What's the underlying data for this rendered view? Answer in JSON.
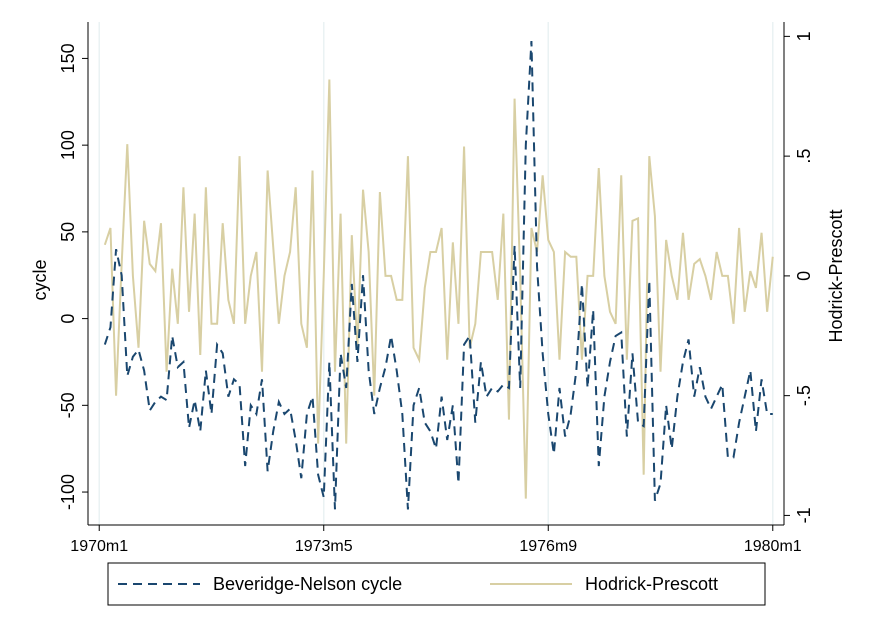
{
  "chart_data": {
    "type": "line",
    "y_label": "cycle",
    "y2_label": "Hodrick-Prescott",
    "x": [
      121,
      122,
      123,
      124,
      125,
      126,
      127,
      128,
      129,
      130,
      131,
      132,
      133,
      134,
      135,
      136,
      137,
      138,
      139,
      140,
      141,
      142,
      143,
      144,
      145,
      146,
      147,
      148,
      149,
      150,
      151,
      152,
      153,
      154,
      155,
      156,
      157,
      158,
      159,
      160,
      161,
      162,
      163,
      164,
      165,
      166,
      167,
      168,
      169,
      170,
      171,
      172,
      173,
      174,
      175,
      176,
      177,
      178,
      179,
      180,
      181,
      182,
      183,
      184,
      185,
      186,
      187,
      188,
      189,
      190,
      191,
      192,
      193,
      194,
      195,
      196,
      197,
      198,
      199,
      200,
      201,
      202,
      203,
      204,
      205,
      206,
      207,
      208,
      209,
      210,
      211,
      212,
      213,
      214,
      215,
      216,
      217,
      218,
      219,
      220,
      221,
      222,
      223,
      224,
      225,
      226,
      227,
      228,
      229,
      230,
      231,
      232,
      233,
      234,
      235,
      236,
      237,
      238,
      239,
      240
    ],
    "xlim": [
      118,
      242
    ],
    "xticks": [
      {
        "value": 120,
        "label": "1970m1"
      },
      {
        "value": 160,
        "label": "1973m5"
      },
      {
        "value": 200,
        "label": "1976m9"
      },
      {
        "value": 240,
        "label": "1980m1"
      }
    ],
    "ylim": [
      -119,
      171
    ],
    "yticks": [
      -100,
      -50,
      0,
      50,
      100,
      150
    ],
    "y2lim": [
      -1.04,
      1.06
    ],
    "y2ticks": [
      -1,
      {
        "value": -0.5,
        "label": "-.5"
      },
      0,
      {
        "value": 0.5,
        "label": ".5"
      },
      1
    ],
    "grid": true,
    "series": [
      {
        "name": "Beveridge-Nelson cycle",
        "color": "#1a476f",
        "dash": true,
        "values": [
          -15,
          -5,
          40,
          25,
          -33,
          -22,
          -18,
          -30,
          -53,
          -48,
          -45,
          -47,
          -10,
          -28,
          -25,
          -63,
          -47,
          -65,
          -30,
          -55,
          -15,
          -20,
          -45,
          -35,
          -38,
          -85,
          -50,
          -55,
          -35,
          -88,
          -65,
          -48,
          -55,
          -52,
          -70,
          -92,
          -55,
          -45,
          -90,
          -103,
          -25,
          -110,
          -20,
          -40,
          20,
          -25,
          25,
          -30,
          -55,
          -40,
          -28,
          -10,
          -30,
          -55,
          -110,
          -50,
          -40,
          -60,
          -65,
          -75,
          -45,
          -70,
          -50,
          -95,
          -15,
          -10,
          -60,
          -25,
          -45,
          -40,
          -42,
          -38,
          -40,
          42,
          -40,
          100,
          160,
          30,
          -20,
          -55,
          -78,
          -40,
          -68,
          -55,
          -30,
          20,
          -40,
          5,
          -85,
          -45,
          -25,
          -10,
          -8,
          -68,
          -20,
          -60,
          -62,
          22,
          -105,
          -95,
          -50,
          -75,
          -45,
          -25,
          -12,
          -45,
          -28,
          -45,
          -52,
          -45,
          -38,
          -80,
          -80,
          -60,
          -45,
          -30,
          -65,
          -35,
          -55,
          -55
        ]
      },
      {
        "name": "Hodrick-Prescott",
        "color": "#d8cfa3",
        "axis": "y2",
        "values": [
          0.13,
          0.2,
          -0.5,
          0.05,
          0.55,
          0.0,
          -0.3,
          0.23,
          0.05,
          0.02,
          0.22,
          -0.4,
          0.03,
          -0.2,
          0.37,
          -0.15,
          0.26,
          -0.33,
          0.37,
          -0.2,
          -0.2,
          0.22,
          -0.1,
          -0.2,
          0.5,
          -0.2,
          0.0,
          0.1,
          -0.4,
          0.44,
          0.12,
          -0.2,
          0.0,
          0.1,
          0.37,
          -0.2,
          -0.3,
          0.44,
          -0.7,
          0.0,
          0.82,
          -0.4,
          0.26,
          -0.7,
          0.17,
          -0.3,
          0.36,
          0.1,
          -0.5,
          0.35,
          0.0,
          0.0,
          -0.1,
          -0.1,
          0.5,
          -0.3,
          -0.35,
          -0.05,
          0.1,
          0.1,
          0.2,
          -0.35,
          0.14,
          -0.2,
          0.54,
          -0.3,
          -0.2,
          0.1,
          0.1,
          0.1,
          -0.1,
          0.26,
          -0.6,
          0.74,
          0.0,
          -0.93,
          0.2,
          0.1,
          0.42,
          0.15,
          0.1,
          -0.35,
          0.1,
          0.08,
          0.08,
          -0.35,
          0.0,
          0.0,
          0.45,
          0.0,
          -0.15,
          -0.2,
          0.42,
          -0.35,
          0.23,
          0.24,
          -0.83,
          0.5,
          0.25,
          -0.4,
          0.15,
          0.0,
          -0.1,
          0.18,
          -0.1,
          0.05,
          0.07,
          0.0,
          -0.1,
          0.1,
          0.0,
          0.0,
          -0.2,
          0.2,
          -0.15,
          0.02,
          -0.05,
          0.18,
          -0.15,
          0.08
        ]
      }
    ]
  }
}
